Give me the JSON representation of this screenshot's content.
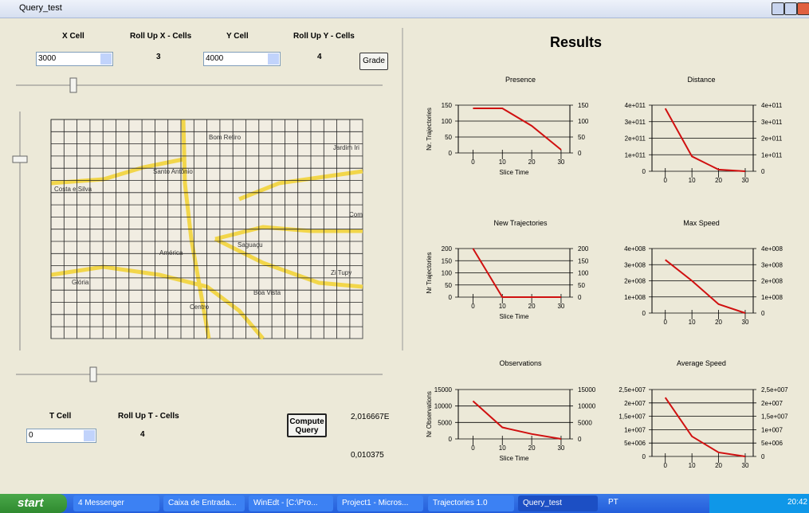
{
  "window": {
    "title": "Query_test"
  },
  "controls": {
    "x_cell_label": "X Cell",
    "roll_up_x_label": "Roll Up X - Cells",
    "y_cell_label": "Y Cell",
    "roll_up_y_label": "Roll Up Y - Cells",
    "x_cell_value": "3000",
    "roll_up_x_value": "3",
    "y_cell_value": "4000",
    "roll_up_y_value": "4",
    "grade_button": "Grade",
    "t_cell_label": "T Cell",
    "roll_up_t_label": "Roll Up T - Cells",
    "t_cell_value": "0",
    "roll_up_t_value": "4",
    "compute_button": "Compute Query",
    "output_1": "2,016667E",
    "output_2": "0,010375"
  },
  "map": {
    "labels": [
      "Bom Retiro",
      "Santo Antônio",
      "Costa e Silva",
      "Jardim Iri",
      "Saguaçu",
      "América",
      "Glória",
      "Boa Vista",
      "Centro",
      "Zi Tupy",
      "Com"
    ]
  },
  "results": {
    "title": "Results",
    "charts": [
      {
        "type": "line",
        "title": "Presence",
        "x_label": "Slice Time",
        "y_label": "Nr. Trajectories",
        "x": [
          0,
          10,
          20,
          30
        ],
        "values": [
          140,
          140,
          85,
          10
        ],
        "color": "#d01010",
        "xlim": [
          -5,
          33
        ],
        "xticks": [
          0,
          10,
          20,
          30
        ],
        "ylim": [
          0,
          150
        ],
        "yticks": [
          0,
          50,
          100,
          150
        ]
      },
      {
        "type": "line",
        "title": "Distance",
        "x": [
          0,
          10,
          20,
          30
        ],
        "values": [
          380000000000,
          90000000000,
          10000000000,
          0
        ],
        "color": "#d01010",
        "xlim": [
          -5,
          33
        ],
        "xticks": [
          0,
          10,
          20,
          30
        ],
        "ylim": [
          0,
          400000000000
        ],
        "yticks": [
          0,
          {
            "value": 100000000000,
            "label": "1e+011"
          },
          {
            "value": 200000000000,
            "label": "2e+011"
          },
          {
            "value": 300000000000,
            "label": "3e+011"
          },
          {
            "value": 400000000000,
            "label": "4e+011"
          }
        ]
      },
      {
        "type": "line",
        "title": "New Trajectories",
        "x_label": "Slice Time",
        "y_label": "Nr Trajectories",
        "x": [
          0,
          10,
          20,
          30
        ],
        "values": [
          200,
          0,
          0,
          0
        ],
        "color": "#d01010",
        "xlim": [
          -5,
          33
        ],
        "xticks": [
          0,
          10,
          20,
          30
        ],
        "ylim": [
          0,
          200
        ],
        "yticks": [
          0,
          50,
          100,
          150,
          200
        ]
      },
      {
        "type": "line",
        "title": "Max Speed",
        "x": [
          0,
          10,
          20,
          30
        ],
        "values": [
          330000000,
          200000000,
          55000000,
          0
        ],
        "color": "#d01010",
        "xlim": [
          -5,
          33
        ],
        "xticks": [
          0,
          10,
          20,
          30
        ],
        "ylim": [
          0,
          400000000
        ],
        "yticks": [
          0,
          {
            "value": 100000000,
            "label": "1e+008"
          },
          {
            "value": 200000000,
            "label": "2e+008"
          },
          {
            "value": 300000000,
            "label": "3e+008"
          },
          {
            "value": 400000000,
            "label": "4e+008"
          }
        ]
      },
      {
        "type": "line",
        "title": "Observations",
        "x_label": "Slice Time",
        "y_label": "Nr Observations",
        "x": [
          0,
          10,
          20,
          30
        ],
        "values": [
          11500,
          3500,
          1500,
          0
        ],
        "color": "#d01010",
        "xlim": [
          -5,
          33
        ],
        "xticks": [
          0,
          10,
          20,
          30
        ],
        "ylim": [
          0,
          15000
        ],
        "yticks": [
          0,
          5000,
          10000,
          15000
        ]
      },
      {
        "type": "line",
        "title": "Average Speed",
        "x": [
          0,
          10,
          20,
          30
        ],
        "values": [
          22000000,
          7500000,
          1500000,
          0
        ],
        "color": "#d01010",
        "xlim": [
          -5,
          33
        ],
        "xticks": [
          0,
          10,
          20,
          30
        ],
        "ylim": [
          0,
          25000000
        ],
        "yticks": [
          0,
          {
            "value": 5000000,
            "label": "5e+006"
          },
          {
            "value": 10000000,
            "label": "1e+007"
          },
          {
            "value": 15000000,
            "label": "1,5e+007"
          },
          {
            "value": 20000000,
            "label": "2e+007"
          },
          {
            "value": 25000000,
            "label": "2,5e+007"
          }
        ]
      }
    ]
  },
  "taskbar": {
    "start": "start",
    "items": [
      "4 Messenger",
      "Caixa de Entrada...",
      "WinEdt - [C:\\Pro...",
      "Project1 - Micros...",
      "Trajectories 1.0",
      "Query_test"
    ],
    "language": "PT",
    "clock": "20:42"
  }
}
